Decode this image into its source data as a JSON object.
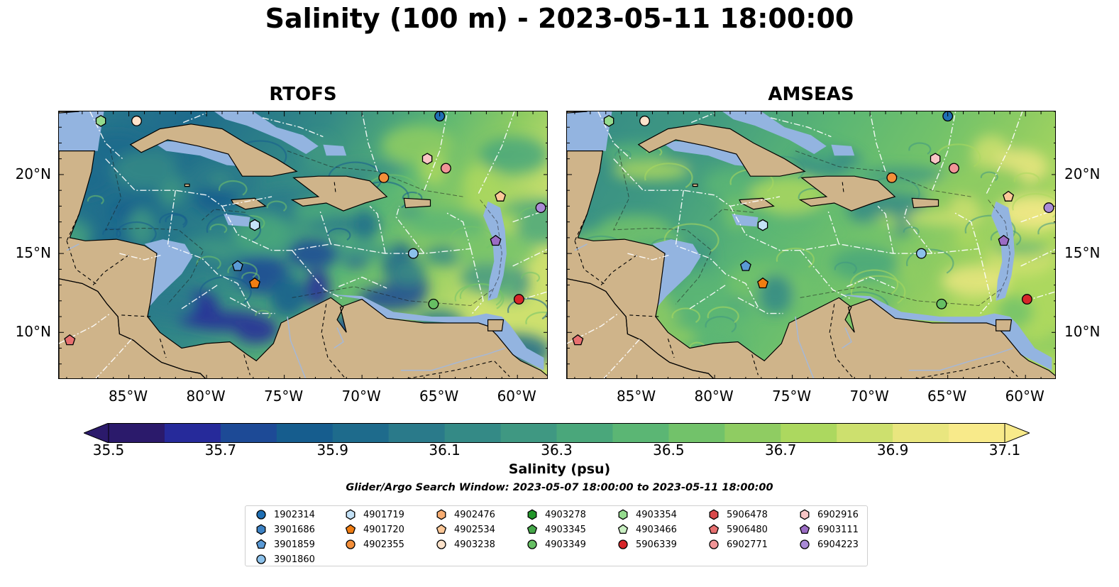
{
  "title": "Salinity (100 m) - 2023-05-11 18:00:00",
  "panels": [
    {
      "title": "RTOFS",
      "variant": "rtofs"
    },
    {
      "title": "AMSEAS",
      "variant": "amseas"
    }
  ],
  "map_extent": {
    "lon": [
      -89.5,
      -58.0
    ],
    "lat": [
      7.0,
      24.0
    ]
  },
  "axes": {
    "lat_ticks": [
      {
        "value": 20,
        "label": "20°N"
      },
      {
        "value": 15,
        "label": "15°N"
      },
      {
        "value": 10,
        "label": "10°N"
      }
    ],
    "lon_ticks": [
      {
        "value": -85,
        "label": "85°W"
      },
      {
        "value": -80,
        "label": "80°W"
      },
      {
        "value": -75,
        "label": "75°W"
      },
      {
        "value": -70,
        "label": "70°W"
      },
      {
        "value": -65,
        "label": "65°W"
      },
      {
        "value": -60,
        "label": "60°W"
      }
    ]
  },
  "colors": {
    "land": "#cfb48a",
    "shallow_water": "#93b4e0",
    "colormap": [
      "#2b1a6b",
      "#262a9a",
      "#1d4a96",
      "#165d8e",
      "#1e6b8c",
      "#2a7a8a",
      "#348a86",
      "#3f9882",
      "#4aa77b",
      "#5bb674",
      "#72c26a",
      "#8fcc62",
      "#acd85f",
      "#cde06e",
      "#e9e67f",
      "#f8ea8a"
    ]
  },
  "colorbar": {
    "label": "Salinity (psu)",
    "range": [
      35.5,
      37.1
    ],
    "extend": "both",
    "ticks": [
      "35.5",
      "35.7",
      "35.9",
      "36.1",
      "36.3",
      "36.5",
      "36.7",
      "36.9",
      "37.1"
    ]
  },
  "search_window": "Glider/Argo Search Window: 2023-05-07 18:00:00 to 2023-05-11 18:00:00",
  "floats": [
    {
      "id": "1902314",
      "shape": "circle",
      "color": "#1f6fb4",
      "lon": -65.0,
      "lat": 23.7
    },
    {
      "id": "3901686",
      "shape": "hexagon",
      "color": "#3d82c4",
      "lon": null,
      "lat": null
    },
    {
      "id": "3901859",
      "shape": "pentagon",
      "color": "#5a9ad6",
      "lon": -78.0,
      "lat": 14.2
    },
    {
      "id": "3901860",
      "shape": "circle",
      "color": "#8cc1ea",
      "lon": -66.7,
      "lat": 15.0
    },
    {
      "id": "4901719",
      "shape": "hexagon",
      "color": "#c4e2f7",
      "lon": -76.9,
      "lat": 16.8
    },
    {
      "id": "4901720",
      "shape": "pentagon",
      "color": "#f07d12",
      "lon": -76.9,
      "lat": 13.1
    },
    {
      "id": "4902355",
      "shape": "circle",
      "color": "#f48f3a",
      "lon": -68.6,
      "lat": 19.8
    },
    {
      "id": "4902476",
      "shape": "hexagon",
      "color": "#f8ad72",
      "lon": null,
      "lat": null
    },
    {
      "id": "4902534",
      "shape": "pentagon",
      "color": "#fcc898",
      "lon": -61.1,
      "lat": 18.6
    },
    {
      "id": "4903238",
      "shape": "circle",
      "color": "#fde3cb",
      "lon": -84.5,
      "lat": 23.4
    },
    {
      "id": "4903278",
      "shape": "hexagon",
      "color": "#22962a",
      "lon": null,
      "lat": null
    },
    {
      "id": "4903345",
      "shape": "pentagon",
      "color": "#46a84a",
      "lon": null,
      "lat": null
    },
    {
      "id": "4903349",
      "shape": "circle",
      "color": "#66bf63",
      "lon": -65.4,
      "lat": 11.8
    },
    {
      "id": "4903354",
      "shape": "hexagon",
      "color": "#95db8e",
      "lon": -86.8,
      "lat": 23.4
    },
    {
      "id": "4903466",
      "shape": "pentagon",
      "color": "#c9efc2",
      "lon": null,
      "lat": null
    },
    {
      "id": "5906339",
      "shape": "circle",
      "color": "#d7262a",
      "lon": -59.9,
      "lat": 12.1
    },
    {
      "id": "5906478",
      "shape": "hexagon",
      "color": "#d94a4c",
      "lon": null,
      "lat": null
    },
    {
      "id": "5906480",
      "shape": "pentagon",
      "color": "#e87070",
      "lon": -88.8,
      "lat": 9.5
    },
    {
      "id": "6902771",
      "shape": "circle",
      "color": "#f19597",
      "lon": -64.6,
      "lat": 20.4
    },
    {
      "id": "6902916",
      "shape": "hexagon",
      "color": "#f8c5c5",
      "lon": -65.8,
      "lat": 21.0
    },
    {
      "id": "6903111",
      "shape": "pentagon",
      "color": "#9b6cc4",
      "lon": -61.4,
      "lat": 15.8
    },
    {
      "id": "6904223",
      "shape": "circle",
      "color": "#a98ad6",
      "lon": -58.5,
      "lat": 17.9
    }
  ]
}
